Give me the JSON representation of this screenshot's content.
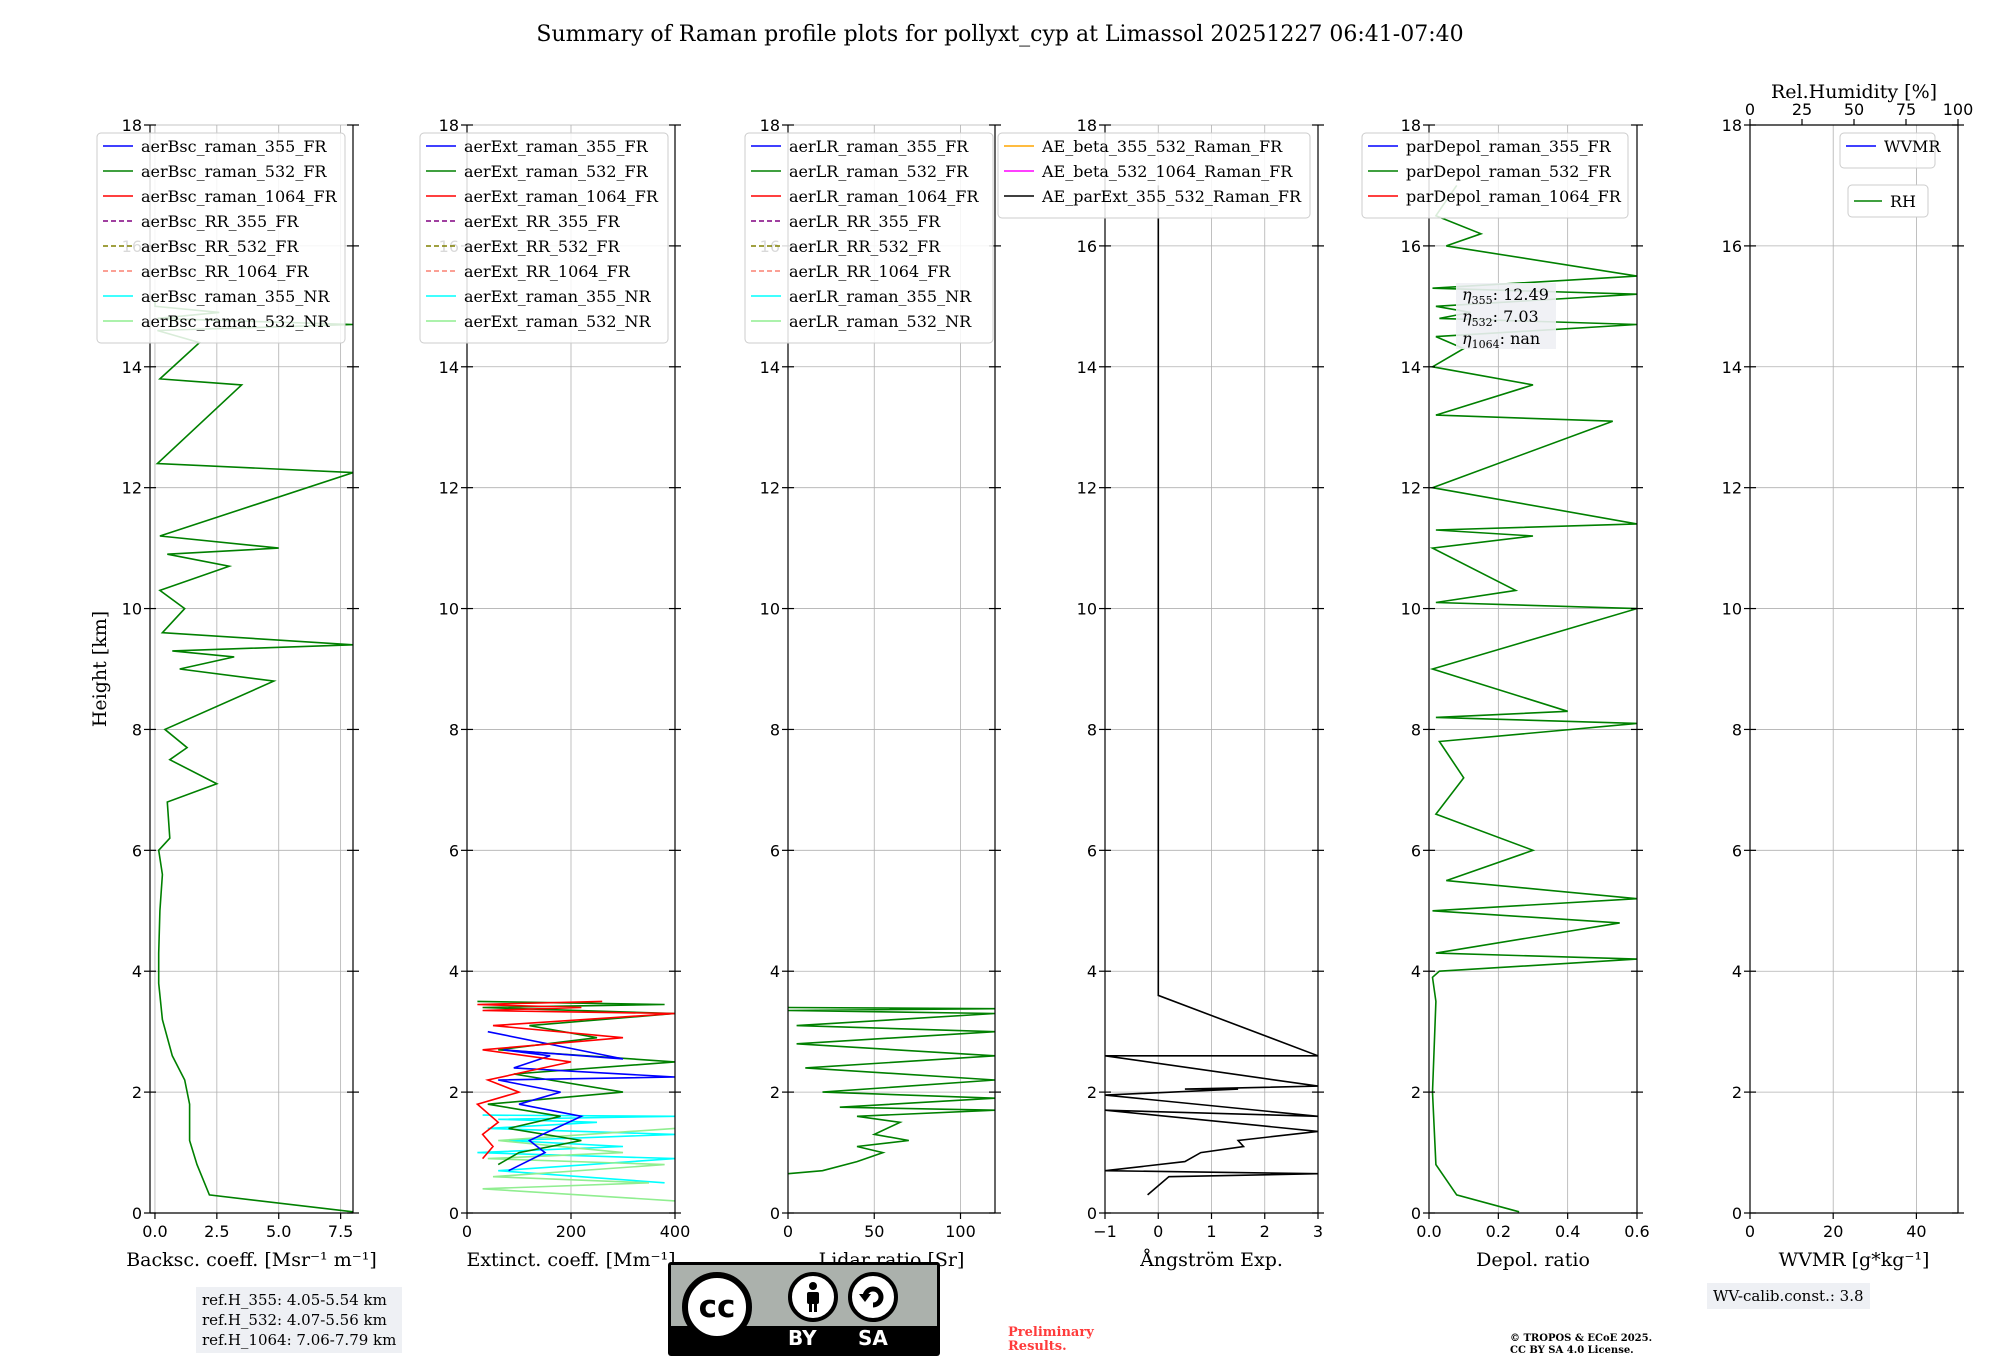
{
  "title": "Summary of Raman profile plots for pollyxt_cyp at Limassol 20251227 06:41-07:40",
  "colors": {
    "blue": "#0000ff",
    "green": "#008000",
    "red": "#ff0000",
    "purple": "#800080",
    "olive": "#808000",
    "salmon": "#fa8072",
    "cyan": "#00ffff",
    "lightgreen": "#90ee90",
    "orange": "#ffa500",
    "magenta": "#ff00ff",
    "black": "#000000"
  },
  "ylabel": "Height [km]",
  "chart_data": [
    {
      "type": "line",
      "id": "bsc",
      "xlabel": "Backsc. coeff. [Msr⁻¹ m⁻¹]",
      "xlim": [
        -0.2,
        8.0
      ],
      "ylim": [
        0,
        18
      ],
      "xticks": [
        {
          "v": 0,
          "l": "0.0"
        },
        {
          "v": 2.5,
          "l": "2.5"
        },
        {
          "v": 5.0,
          "l": "5.0"
        },
        {
          "v": 7.5,
          "l": "7.5"
        }
      ],
      "yticks": [
        0,
        2,
        4,
        6,
        8,
        10,
        12,
        14,
        16,
        18
      ],
      "legend": [
        "aerBsc_raman_355_FR",
        "aerBsc_raman_532_FR",
        "aerBsc_raman_1064_FR",
        "aerBsc_RR_355_FR",
        "aerBsc_RR_532_FR",
        "aerBsc_RR_1064_FR",
        "aerBsc_raman_355_NR",
        "aerBsc_raman_532_NR"
      ],
      "series": [
        {
          "name": "aerBsc_raman_532_FR",
          "color": "green",
          "x": [
            8.0,
            2.2,
            1.7,
            1.4,
            1.4,
            1.2,
            0.7,
            0.3,
            0.15,
            0.15,
            0.2,
            0.3,
            0.15,
            0.6,
            0.5,
            2.5,
            0.6,
            1.3,
            0.4,
            4.8,
            1.0,
            3.2,
            0.7,
            8.0,
            0.3,
            1.2,
            0.2,
            3.0,
            0.5,
            5.0,
            0.2,
            8.0,
            0.1,
            3.5,
            0.2,
            1.8,
            0.1,
            8.0,
            0.1,
            2.6,
            0.0,
            0.0
          ],
          "y": [
            0.02,
            0.3,
            0.8,
            1.2,
            1.8,
            2.2,
            2.6,
            3.2,
            3.8,
            4.3,
            5.0,
            5.6,
            6.0,
            6.2,
            6.8,
            7.1,
            7.5,
            7.7,
            8.0,
            8.8,
            9.0,
            9.2,
            9.3,
            9.4,
            9.6,
            10.0,
            10.3,
            10.7,
            10.9,
            11.0,
            11.2,
            12.25,
            12.4,
            13.7,
            13.8,
            14.4,
            14.6,
            14.7,
            14.8,
            14.9,
            15.0,
            15.1
          ]
        }
      ]
    },
    {
      "type": "line",
      "id": "ext",
      "xlabel": "Extinct. coeff. [Mm⁻¹]",
      "xlim": [
        0,
        400
      ],
      "ylim": [
        0,
        18
      ],
      "xticks": [
        {
          "v": 0,
          "l": "0"
        },
        {
          "v": 200,
          "l": "200"
        },
        {
          "v": 400,
          "l": "400"
        }
      ],
      "yticks": [
        0,
        2,
        4,
        6,
        8,
        10,
        12,
        14,
        16,
        18
      ],
      "legend": [
        "aerExt_raman_355_FR",
        "aerExt_raman_532_FR",
        "aerExt_raman_1064_FR",
        "aerExt_RR_355_FR",
        "aerExt_RR_532_FR",
        "aerExt_RR_1064_FR",
        "aerExt_raman_355_NR",
        "aerExt_raman_532_NR"
      ],
      "series": [
        {
          "name": "aerExt_raman_355_NR",
          "color": "cyan",
          "x": [
            380,
            60,
            400,
            20,
            300,
            80,
            400,
            40,
            250,
            60,
            400,
            30
          ],
          "y": [
            0.5,
            0.7,
            0.9,
            1.0,
            1.1,
            1.2,
            1.3,
            1.4,
            1.5,
            1.55,
            1.6,
            1.62
          ]
        },
        {
          "name": "aerExt_raman_532_NR",
          "color": "lightgreen",
          "x": [
            400,
            30,
            350,
            50,
            380,
            40,
            300,
            60,
            400
          ],
          "y": [
            0.2,
            0.4,
            0.5,
            0.6,
            0.8,
            0.9,
            1.0,
            1.2,
            1.4
          ]
        },
        {
          "name": "aerExt_raman_532_FR",
          "color": "green",
          "x": [
            60,
            100,
            220,
            80,
            180,
            40,
            300,
            90,
            400,
            60,
            250,
            120,
            400,
            30,
            380,
            20
          ],
          "y": [
            0.8,
            1.0,
            1.2,
            1.4,
            1.6,
            1.8,
            2.0,
            2.3,
            2.5,
            2.7,
            2.9,
            3.1,
            3.3,
            3.4,
            3.45,
            3.5
          ]
        },
        {
          "name": "aerExt_raman_355_FR",
          "color": "blue",
          "x": [
            80,
            150,
            120,
            220,
            100,
            180,
            60,
            400,
            90,
            160,
            70,
            300,
            40
          ],
          "y": [
            0.7,
            1.0,
            1.2,
            1.6,
            1.8,
            2.0,
            2.2,
            2.25,
            2.4,
            2.6,
            2.7,
            2.55,
            3.0
          ]
        },
        {
          "name": "aerExt_raman_1064_FR",
          "color": "red",
          "x": [
            30,
            50,
            30,
            60,
            20,
            100,
            40,
            200,
            30,
            300,
            50,
            400,
            30,
            220,
            20,
            260
          ],
          "y": [
            0.9,
            1.1,
            1.3,
            1.5,
            1.8,
            2.0,
            2.2,
            2.5,
            2.7,
            2.9,
            3.1,
            3.3,
            3.35,
            3.4,
            3.45,
            3.5
          ]
        }
      ]
    },
    {
      "type": "line",
      "id": "lr",
      "xlabel": "Lidar ratio [Sr]",
      "xlim": [
        0,
        120
      ],
      "ylim": [
        0,
        18
      ],
      "xticks": [
        {
          "v": 0,
          "l": "0"
        },
        {
          "v": 50,
          "l": "50"
        },
        {
          "v": 100,
          "l": "100"
        }
      ],
      "yticks": [
        0,
        2,
        4,
        6,
        8,
        10,
        12,
        14,
        16,
        18
      ],
      "legend": [
        "aerLR_raman_355_FR",
        "aerLR_raman_532_FR",
        "aerLR_raman_1064_FR",
        "aerLR_RR_355_FR",
        "aerLR_RR_532_FR",
        "aerLR_RR_1064_FR",
        "aerLR_raman_355_NR",
        "aerLR_raman_532_NR"
      ],
      "series": [
        {
          "name": "aerLR_raman_532_FR",
          "color": "green",
          "x": [
            0,
            20,
            40,
            55,
            40,
            70,
            50,
            65,
            40,
            120,
            30,
            120,
            20,
            120,
            10,
            120,
            5,
            120,
            5,
            120,
            0,
            120,
            0
          ],
          "y": [
            0.65,
            0.7,
            0.85,
            1.0,
            1.1,
            1.2,
            1.3,
            1.5,
            1.6,
            1.7,
            1.75,
            1.9,
            2.0,
            2.2,
            2.4,
            2.6,
            2.8,
            3.0,
            3.1,
            3.3,
            3.35,
            3.38,
            3.4
          ]
        }
      ]
    },
    {
      "type": "line",
      "id": "ae",
      "xlabel": "Ångström Exp.",
      "xlim": [
        -1,
        3
      ],
      "ylim": [
        0,
        18
      ],
      "xticks": [
        {
          "v": -1,
          "l": "−1"
        },
        {
          "v": 0,
          "l": "0"
        },
        {
          "v": 1,
          "l": "1"
        },
        {
          "v": 2,
          "l": "2"
        },
        {
          "v": 3,
          "l": "3"
        }
      ],
      "yticks": [
        0,
        2,
        4,
        6,
        8,
        10,
        12,
        14,
        16,
        18
      ],
      "legend": [
        "AE_beta_355_532_Raman_FR",
        "AE_beta_532_1064_Raman_FR",
        "AE_parExt_355_532_Raman_FR"
      ],
      "series": [
        {
          "name": "AE_parExt_355_532_Raman_FR",
          "color": "black",
          "x": [
            -0.2,
            -0.2,
            0.2,
            3.0,
            -1.0,
            0.5,
            0.8,
            1.6,
            1.5,
            3.0,
            -1.0,
            3.0,
            -1.0,
            1.5,
            0.5,
            3.0,
            -1.0,
            3.0,
            0.0,
            0.0
          ],
          "y": [
            0.3,
            0.3,
            0.6,
            0.65,
            0.7,
            0.85,
            1.0,
            1.1,
            1.2,
            1.35,
            1.7,
            1.6,
            1.95,
            2.05,
            2.05,
            2.1,
            2.6,
            2.6,
            3.6,
            17.0
          ]
        }
      ]
    },
    {
      "type": "line",
      "id": "dep",
      "xlabel": "Depol. ratio",
      "xlim": [
        0,
        0.6
      ],
      "ylim": [
        0,
        18
      ],
      "xticks": [
        {
          "v": 0,
          "l": "0.0"
        },
        {
          "v": 0.2,
          "l": "0.2"
        },
        {
          "v": 0.4,
          "l": "0.4"
        },
        {
          "v": 0.6,
          "l": "0.6"
        }
      ],
      "yticks": [
        0,
        2,
        4,
        6,
        8,
        10,
        12,
        14,
        16,
        18
      ],
      "legend": [
        "parDepol_raman_355_FR",
        "parDepol_raman_532_FR",
        "parDepol_raman_1064_FR"
      ],
      "series": [
        {
          "name": "parDepol_raman_532_FR",
          "color": "green",
          "x": [
            0.26,
            0.08,
            0.02,
            0.01,
            0.02,
            0.01,
            0.03,
            0.6,
            0.02,
            0.55,
            0.01,
            0.6,
            0.05,
            0.3,
            0.02,
            0.1,
            0.03,
            0.6,
            0.02,
            0.4,
            0.01,
            0.6,
            0.02,
            0.25,
            0.01,
            0.3,
            0.02,
            0.6,
            0.01,
            0.53,
            0.02,
            0.3,
            0.01,
            0.1,
            0.02,
            0.6,
            0.03,
            0.12,
            0.02,
            0.6,
            0.01,
            0.6,
            0.05,
            0.15,
            0.02,
            0.08
          ],
          "y": [
            0.02,
            0.3,
            0.8,
            2.0,
            3.5,
            3.9,
            4.0,
            4.2,
            4.3,
            4.8,
            5.0,
            5.2,
            5.5,
            6.0,
            6.6,
            7.2,
            7.8,
            8.1,
            8.2,
            8.3,
            9.0,
            10.0,
            10.1,
            10.3,
            11.0,
            11.2,
            11.3,
            11.4,
            12.0,
            13.1,
            13.2,
            13.7,
            14.0,
            14.3,
            14.5,
            14.7,
            14.8,
            14.9,
            15.0,
            15.2,
            15.3,
            15.5,
            16.0,
            16.2,
            16.5,
            17.0
          ]
        }
      ]
    },
    {
      "type": "line",
      "id": "wv",
      "xlabel": "WVMR [g*kg⁻¹]",
      "xlim": [
        0,
        50
      ],
      "ylim": [
        0,
        18
      ],
      "xticks": [
        {
          "v": 0,
          "l": "0"
        },
        {
          "v": 20,
          "l": "20"
        },
        {
          "v": 40,
          "l": "40"
        }
      ],
      "top_xlabel": "Rel.Humidity [%]",
      "top_xlim": [
        0,
        100
      ],
      "top_xticks": [
        {
          "v": 0,
          "l": "0"
        },
        {
          "v": 25,
          "l": "25"
        },
        {
          "v": 50,
          "l": "50"
        },
        {
          "v": 75,
          "l": "75"
        },
        {
          "v": 100,
          "l": "100"
        }
      ],
      "yticks": [
        0,
        2,
        4,
        6,
        8,
        10,
        12,
        14,
        16,
        18
      ],
      "legend": [
        "WVMR"
      ],
      "legend2": [
        "RH"
      ],
      "series": []
    }
  ],
  "annotations": {
    "refH": [
      "ref.H_355: 4.05-5.54 km",
      "ref.H_532: 4.07-5.56 km",
      "ref.H_1064: 7.06-7.79 km"
    ],
    "eta": [
      {
        "sub": "355",
        "val": ": 12.49"
      },
      {
        "sub": "532",
        "val": ": 7.03"
      },
      {
        "sub": "1064",
        "val": ": nan"
      }
    ],
    "eta_symbol": "η",
    "wv_calib": "WV-calib.const.: 3.8",
    "preliminary": [
      "Preliminary",
      "Results."
    ],
    "copyright": [
      "© TROPOS & ECoE 2025.",
      "CC BY SA 4.0 License."
    ],
    "cc_logo": {
      "cc": "cc",
      "by": "BY",
      "sa": "SA"
    }
  }
}
